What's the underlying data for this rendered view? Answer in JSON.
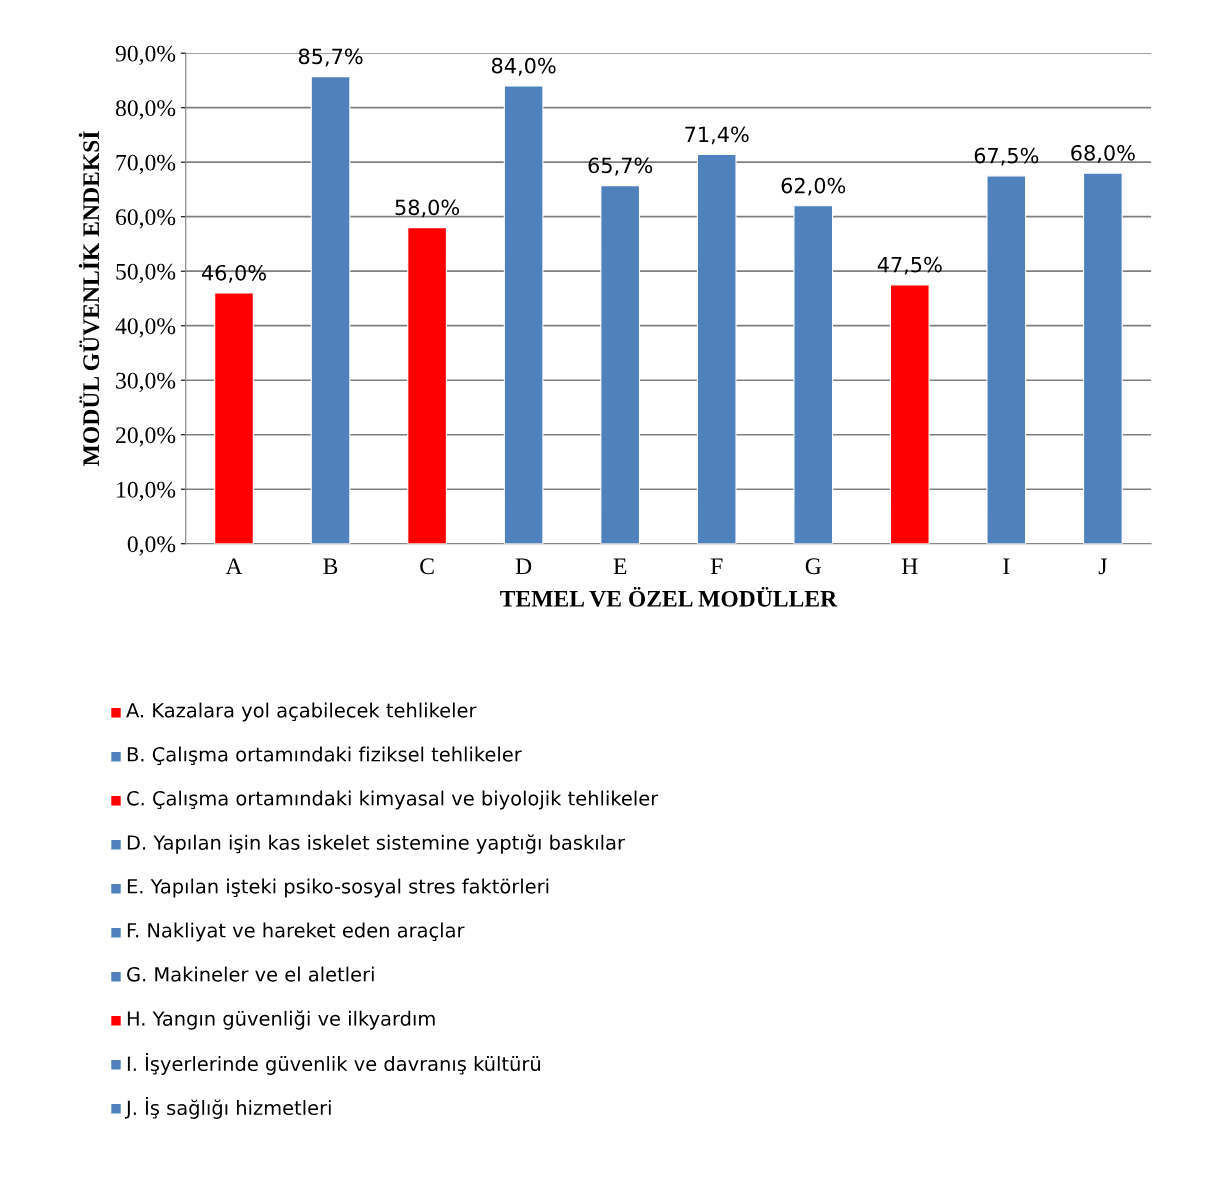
{
  "chart_data": {
    "type": "bar",
    "xlabel": "TEMEL VE ÖZEL MODÜLLER",
    "ylabel": "MODÜL GÜVENLİK ENDEKSİ",
    "categories": [
      "A",
      "B",
      "C",
      "D",
      "E",
      "F",
      "G",
      "H",
      "I",
      "J"
    ],
    "values": [
      46.0,
      85.7,
      58.0,
      84.0,
      65.7,
      71.4,
      62.0,
      47.5,
      67.5,
      68.0
    ],
    "colors": [
      "#ff0000",
      "#4f81bd",
      "#ff0000",
      "#4f81bd",
      "#4f81bd",
      "#4f81bd",
      "#4f81bd",
      "#ff0000",
      "#4f81bd",
      "#4f81bd"
    ],
    "value_labels": [
      "46,0%",
      "85,7%",
      "58,0%",
      "84,0%",
      "65,7%",
      "71,4%",
      "62,0%",
      "47,5%",
      "67,5%",
      "68,0%"
    ],
    "ylim": [
      0,
      90
    ],
    "yticks": [
      {
        "value": 0,
        "label": "0,0%"
      },
      {
        "value": 10,
        "label": "10,0%"
      },
      {
        "value": 20,
        "label": "20,0%"
      },
      {
        "value": 30,
        "label": "30,0%"
      },
      {
        "value": 40,
        "label": "40,0%"
      },
      {
        "value": 50,
        "label": "50,0%"
      },
      {
        "value": 60,
        "label": "60,0%"
      },
      {
        "value": 70,
        "label": "70,0%"
      },
      {
        "value": 80,
        "label": "80,0%"
      },
      {
        "value": 90,
        "label": "90,0%"
      }
    ],
    "grid": "y",
    "annotations": [
      "A. Kazalara yol açabilecek tehlikeler",
      "B. Çalışma ortamındaki fiziksel tehlikeler",
      "C. Çalışma ortamındaki kimyasal ve biyolojik tehlikeler",
      "D. Yapılan işin kas iskelet sistemine yaptığı baskılar",
      "E. Yapılan işteki psiko-sosyal stres faktörleri",
      "F. Nakliyat ve hareket eden araçlar",
      "G. Makineler ve el aletleri",
      "H. Yangın güvenliği ve ilkyardım",
      "I. İşyerlerinde güvenlik ve davranış kültürü",
      "J. İş sağlığı hizmetleri"
    ]
  }
}
